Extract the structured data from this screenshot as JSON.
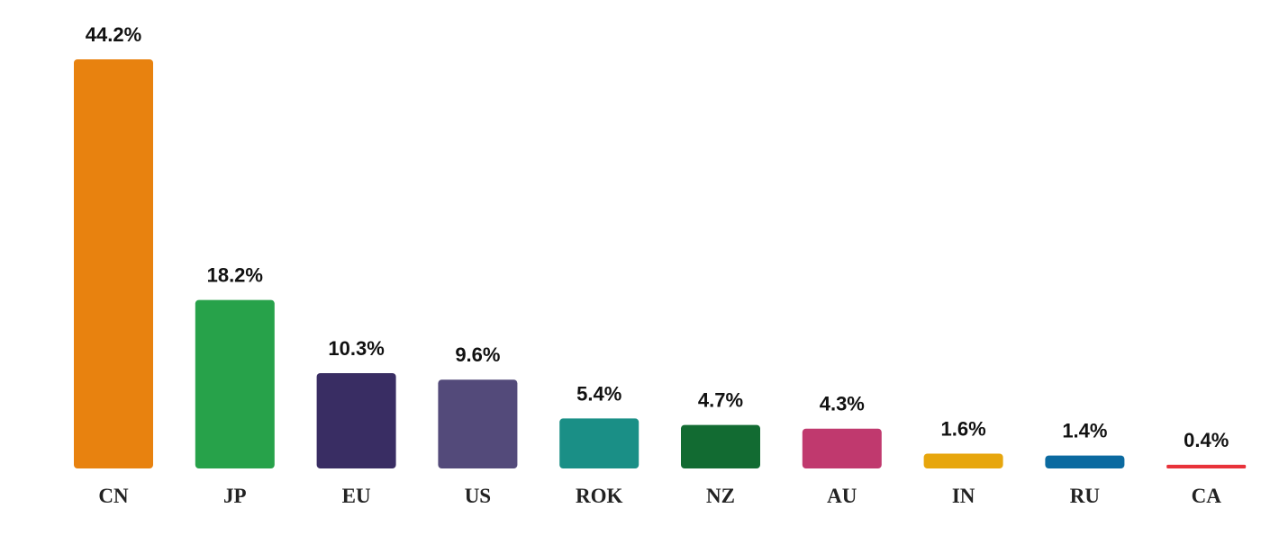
{
  "chart_data": {
    "type": "bar",
    "categories": [
      "CN",
      "JP",
      "EU",
      "US",
      "ROK",
      "NZ",
      "AU",
      "IN",
      "RU",
      "CA"
    ],
    "values": [
      44.2,
      18.2,
      10.3,
      9.6,
      5.4,
      4.7,
      4.3,
      1.6,
      1.4,
      0.4
    ],
    "value_labels": [
      "44.2%",
      "18.2%",
      "10.3%",
      "9.6%",
      "5.4%",
      "4.7%",
      "4.3%",
      "1.6%",
      "1.4%",
      "0.4%"
    ],
    "colors": [
      "#e8820f",
      "#27a24a",
      "#392d63",
      "#534a7a",
      "#1a8f86",
      "#126b32",
      "#c0396e",
      "#e7a60d",
      "#0b6aa0",
      "#e8323a"
    ],
    "unit": "%",
    "ylim": [
      0,
      44.2
    ],
    "grid": false,
    "legend": "none"
  }
}
